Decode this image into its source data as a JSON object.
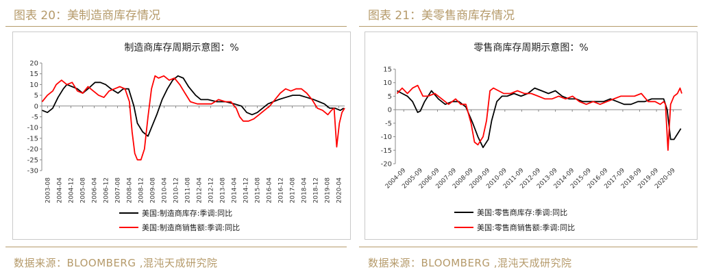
{
  "left": {
    "figure_title": "图表 20：美制造商库存情况",
    "source": "数据来源：BLOOMBERG ,混沌天成研究院"
  },
  "right": {
    "figure_title": "图表 21：美零售商库存情况",
    "source": "数据来源：BLOOMBERG ,混沌天成研究院"
  },
  "colors": {
    "accent": "#b59a6a",
    "series_black": "#000000",
    "series_red": "#ff0000"
  },
  "chart_data": [
    {
      "type": "line",
      "title": "制造商库存周期示意图：%",
      "xlim": [
        2003.58,
        2020.75
      ],
      "ylim": [
        -30,
        20
      ],
      "yticks": [
        20,
        15,
        10,
        5,
        0,
        -5,
        -10,
        -15,
        -20,
        -25,
        -30
      ],
      "xtick_labels": [
        "2003-08",
        "2004-04",
        "2004-12",
        "2005-08",
        "2006-04",
        "2006-12",
        "2007-08",
        "2008-04",
        "2008-12",
        "2009-08",
        "2010-04",
        "2010-12",
        "2011-08",
        "2012-04",
        "2012-12",
        "2013-08",
        "2014-04",
        "2014-12",
        "2015-08",
        "2016-04",
        "2016-12",
        "2017-08",
        "2018-04",
        "2018-12",
        "2019-08",
        "2020-04"
      ],
      "legend_position": "bottom",
      "series": [
        {
          "name": "美国:制造商库存:季调:同比",
          "color": "#000000",
          "x": [
            2003.6,
            2003.9,
            2004.2,
            2004.5,
            2004.8,
            2005.0,
            2005.3,
            2005.6,
            2005.9,
            2006.2,
            2006.6,
            2006.9,
            2007.2,
            2007.5,
            2007.9,
            2008.2,
            2008.5,
            2008.8,
            2009.0,
            2009.3,
            2009.6,
            2009.8,
            2010.1,
            2010.4,
            2010.7,
            2011.0,
            2011.3,
            2011.6,
            2011.9,
            2012.3,
            2012.6,
            2013.0,
            2013.5,
            2014.0,
            2014.5,
            2014.9,
            2015.2,
            2015.5,
            2015.8,
            2016.1,
            2016.4,
            2016.7,
            2017.0,
            2017.4,
            2017.8,
            2018.2,
            2018.6,
            2019.0,
            2019.3,
            2019.6,
            2019.9,
            2020.2,
            2020.5,
            2020.7
          ],
          "y": [
            -2,
            -3,
            -1,
            4,
            8,
            10,
            9,
            8,
            6,
            8,
            11,
            11,
            10,
            8,
            6,
            8,
            8,
            0,
            -8,
            -12,
            -14,
            -10,
            -4,
            3,
            8,
            12,
            14,
            13,
            9,
            5,
            3,
            3,
            2,
            2,
            1,
            0,
            -3,
            -4,
            -3,
            -1,
            1,
            2,
            3,
            4,
            5,
            5,
            4,
            3,
            2,
            1,
            -1,
            -1,
            -2,
            -1
          ]
        },
        {
          "name": "美国:制造商销售额:季调:同比",
          "color": "#ff0000",
          "x": [
            2003.6,
            2003.9,
            2004.2,
            2004.4,
            2004.7,
            2005.0,
            2005.3,
            2005.6,
            2005.9,
            2006.2,
            2006.5,
            2006.8,
            2007.1,
            2007.4,
            2007.7,
            2008.0,
            2008.3,
            2008.55,
            2008.7,
            2008.85,
            2009.0,
            2009.2,
            2009.4,
            2009.6,
            2009.8,
            2010.0,
            2010.2,
            2010.5,
            2010.8,
            2011.1,
            2011.4,
            2011.7,
            2012.0,
            2012.4,
            2012.8,
            2013.2,
            2013.6,
            2014.0,
            2014.3,
            2014.6,
            2014.8,
            2015.0,
            2015.3,
            2015.6,
            2015.9,
            2016.2,
            2016.5,
            2016.8,
            2017.1,
            2017.4,
            2017.7,
            2018.0,
            2018.3,
            2018.6,
            2018.9,
            2019.2,
            2019.5,
            2019.8,
            2020.0,
            2020.15,
            2020.3,
            2020.45,
            2020.6,
            2020.75
          ],
          "y": [
            2,
            5,
            7,
            10,
            12,
            10,
            11,
            7,
            6,
            9,
            7,
            5,
            4,
            7,
            8,
            9,
            8,
            2,
            -12,
            -22,
            -25,
            -25,
            -20,
            -5,
            8,
            14,
            13,
            14,
            12,
            13,
            10,
            6,
            2,
            1,
            1,
            1,
            3,
            2,
            2,
            -1,
            -5,
            -7,
            -7,
            -6,
            -4,
            -2,
            0,
            3,
            6,
            8,
            7,
            8,
            8,
            6,
            3,
            -1,
            -2,
            -4,
            -2,
            -1,
            -19,
            -8,
            -3,
            -1
          ]
        }
      ]
    },
    {
      "type": "line",
      "title": "零售商库存周期示意图：%",
      "xlim": [
        2004.3,
        2020.95
      ],
      "ylim": [
        -20,
        15
      ],
      "yticks": [
        15,
        10,
        5,
        0,
        -5,
        -10,
        -15,
        -20
      ],
      "xtick_labels": [
        "2004-09",
        "2005-09",
        "2006-09",
        "2007-09",
        "2008-09",
        "2009-09",
        "2010-09",
        "2011-09",
        "2012-09",
        "2013-09",
        "2014-09",
        "2015-09",
        "2016-09",
        "2017-09",
        "2018-09",
        "2019-09",
        "2020-09"
      ],
      "legend_position": "bottom",
      "series": [
        {
          "name": "美国:零售商库存:季调:同比",
          "color": "#000000",
          "x": [
            2004.4,
            2004.7,
            2005.0,
            2005.3,
            2005.6,
            2005.75,
            2006.0,
            2006.4,
            2006.8,
            2007.2,
            2007.6,
            2008.0,
            2008.4,
            2008.8,
            2009.1,
            2009.4,
            2009.7,
            2009.9,
            2010.2,
            2010.5,
            2010.8,
            2011.2,
            2011.6,
            2012.0,
            2012.4,
            2012.8,
            2013.2,
            2013.6,
            2014.0,
            2014.4,
            2014.8,
            2015.2,
            2015.6,
            2016.0,
            2016.4,
            2016.8,
            2017.2,
            2017.6,
            2018.0,
            2018.4,
            2018.8,
            2019.2,
            2019.6,
            2019.9,
            2020.1,
            2020.3,
            2020.5,
            2020.7,
            2020.9
          ],
          "y": [
            7,
            6,
            5,
            3,
            -1,
            -0.5,
            3,
            7,
            4,
            2,
            3,
            3,
            1,
            -5,
            -10,
            -14,
            -11,
            -4,
            3,
            5,
            5,
            6,
            5,
            6,
            8,
            7,
            6,
            7,
            5,
            4,
            4,
            3,
            3,
            3,
            3,
            4,
            3,
            2,
            2,
            3,
            3,
            4,
            4,
            4,
            0,
            -11,
            -11,
            -9,
            -7
          ]
        },
        {
          "name": "美国:零售商销售额:季调:同比",
          "color": "#ff0000",
          "x": [
            2004.4,
            2004.7,
            2005.0,
            2005.3,
            2005.6,
            2005.9,
            2006.2,
            2006.6,
            2007.0,
            2007.4,
            2007.8,
            2008.1,
            2008.4,
            2008.7,
            2008.9,
            2009.1,
            2009.4,
            2009.6,
            2009.8,
            2010.0,
            2010.3,
            2010.6,
            2011.0,
            2011.4,
            2011.8,
            2012.2,
            2012.6,
            2013.0,
            2013.4,
            2013.8,
            2014.2,
            2014.6,
            2015.0,
            2015.4,
            2015.8,
            2016.2,
            2016.6,
            2017.0,
            2017.4,
            2017.8,
            2018.2,
            2018.6,
            2019.0,
            2019.4,
            2019.7,
            2019.9,
            2020.0,
            2020.15,
            2020.3,
            2020.5,
            2020.7,
            2020.85,
            2020.95
          ],
          "y": [
            6,
            8,
            6,
            8,
            9,
            5,
            5,
            6,
            4,
            2,
            4,
            2,
            2,
            -5,
            -12,
            -13,
            -10,
            -4,
            7,
            8,
            7,
            6,
            6,
            7,
            6,
            6,
            5,
            4,
            4,
            5,
            4,
            5,
            3,
            2,
            3,
            2,
            3,
            4,
            5,
            5,
            5,
            6,
            3,
            3,
            2,
            3,
            2,
            -15,
            2,
            5,
            6,
            8,
            6
          ]
        }
      ]
    }
  ]
}
